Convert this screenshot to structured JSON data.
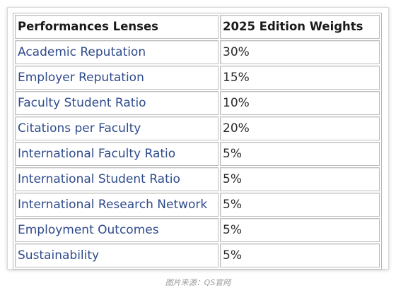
{
  "table": {
    "headers": [
      "Performances Lenses",
      "2025 Edition Weights"
    ],
    "rows": [
      {
        "lens": "Academic Reputation",
        "weight": "30%"
      },
      {
        "lens": "Employer Reputation",
        "weight": "15%"
      },
      {
        "lens": "Faculty Student Ratio",
        "weight": "10%"
      },
      {
        "lens": "Citations per Faculty",
        "weight": "20%"
      },
      {
        "lens": "International Faculty Ratio",
        "weight": "5%"
      },
      {
        "lens": "International Student Ratio",
        "weight": "5%"
      },
      {
        "lens": "International Research Network",
        "weight": "5%"
      },
      {
        "lens": "Employment Outcomes",
        "weight": "5%"
      },
      {
        "lens": "Sustainability",
        "weight": "5%"
      }
    ]
  },
  "caption": "图片来源：QS官网",
  "colors": {
    "lens_text": "#2f4b8c",
    "header_text": "#1a1a1a",
    "border": "#bdbdbd"
  }
}
